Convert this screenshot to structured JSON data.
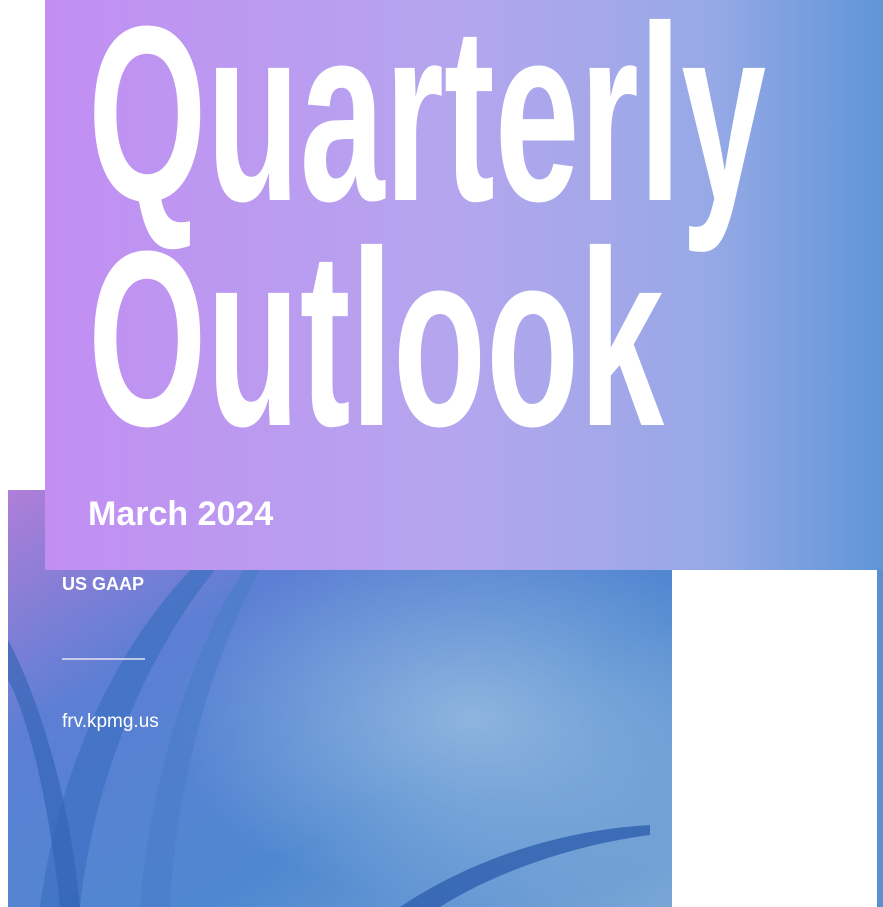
{
  "cover": {
    "title_lines": [
      "Quarterly",
      "Outlook"
    ],
    "date": "March 2024",
    "label": "US GAAP",
    "url": "frv.kpmg.us"
  }
}
